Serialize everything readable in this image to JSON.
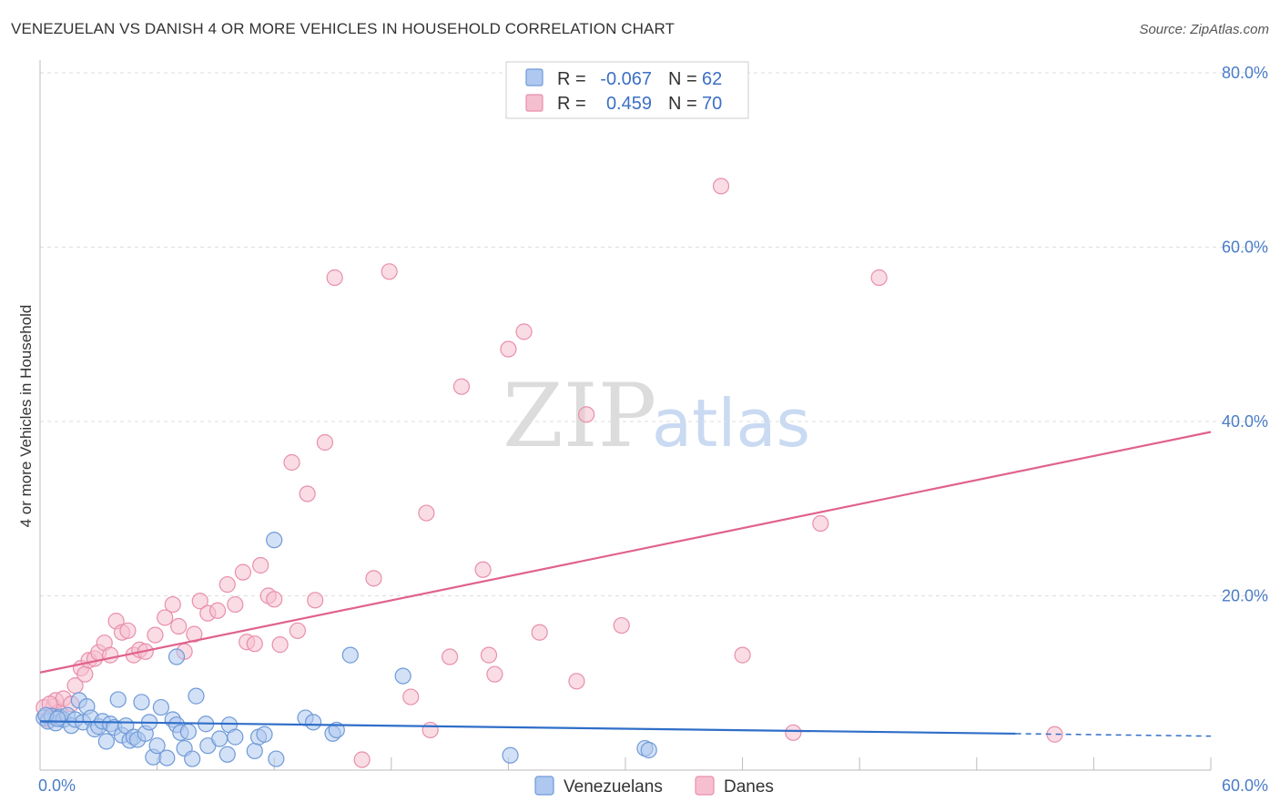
{
  "header": {
    "title": "VENEZUELAN VS DANISH 4 OR MORE VEHICLES IN HOUSEHOLD CORRELATION CHART",
    "source": "Source: ZipAtlas.com"
  },
  "watermark": {
    "zip": "ZIP",
    "atlas": "atlas"
  },
  "colors": {
    "blue_fill": "#aec8ef",
    "blue_stroke": "#6f9ad8",
    "blue_line": "#2f6ec8",
    "pink_fill": "#f6bfd0",
    "pink_stroke": "#e88fab",
    "pink_line": "#e0628c",
    "tick_text": "#4a7cc7",
    "grid": "#dddddd"
  },
  "legend": {
    "rows": [
      {
        "r_label": "R =",
        "r_value": "-0.067",
        "n_label": "N =",
        "n_value": "62",
        "series": "Venezuelans"
      },
      {
        "r_label": "R =",
        "r_value": "0.459",
        "n_label": "N =",
        "n_value": "70",
        "series": "Danes"
      }
    ]
  },
  "chart_data": {
    "type": "scatter",
    "title": "VENEZUELAN VS DANISH 4 OR MORE VEHICLES IN HOUSEHOLD CORRELATION CHART",
    "xlabel": "",
    "ylabel": "4 or more Vehicles in Household",
    "xlim": [
      0,
      60
    ],
    "ylim": [
      0,
      80
    ],
    "x_tick_labels": [
      {
        "value": 0,
        "label": "0.0%"
      },
      {
        "value": 60,
        "label": "60.0%"
      }
    ],
    "y_tick_labels": [
      {
        "value": 20,
        "label": "20.0%"
      },
      {
        "value": 40,
        "label": "40.0%"
      },
      {
        "value": 60,
        "label": "60.0%"
      },
      {
        "value": 80,
        "label": "80.0%"
      }
    ],
    "x_minor_ticks": [
      0,
      6,
      12,
      18,
      24,
      30,
      36,
      42,
      48,
      54,
      60
    ],
    "y_gridlines": [
      20,
      40,
      60,
      80
    ],
    "legend_position": "top-center",
    "series": [
      {
        "name": "Venezuelans",
        "color": "#aec8ef",
        "trend": {
          "x_start": 0,
          "y_start": 5.6,
          "x_end": 60,
          "y_end": 3.9,
          "solid_until_x": 50
        },
        "points": [
          [
            0.2,
            6.0
          ],
          [
            0.4,
            5.6
          ],
          [
            0.6,
            6.2
          ],
          [
            0.8,
            5.4
          ],
          [
            1.0,
            6.1
          ],
          [
            1.2,
            5.8
          ],
          [
            1.4,
            6.3
          ],
          [
            1.6,
            5.1
          ],
          [
            1.8,
            5.8
          ],
          [
            2.0,
            8.0
          ],
          [
            2.2,
            5.5
          ],
          [
            2.4,
            7.3
          ],
          [
            2.6,
            6.0
          ],
          [
            2.8,
            4.7
          ],
          [
            3.0,
            5.0
          ],
          [
            3.2,
            5.6
          ],
          [
            3.4,
            3.3
          ],
          [
            3.6,
            5.3
          ],
          [
            3.8,
            4.9
          ],
          [
            4.0,
            8.1
          ],
          [
            4.2,
            4.0
          ],
          [
            4.4,
            5.1
          ],
          [
            4.6,
            3.4
          ],
          [
            4.8,
            3.8
          ],
          [
            5.0,
            3.5
          ],
          [
            5.2,
            7.8
          ],
          [
            5.4,
            4.2
          ],
          [
            5.6,
            5.5
          ],
          [
            5.8,
            1.5
          ],
          [
            6.0,
            2.8
          ],
          [
            6.2,
            7.2
          ],
          [
            6.5,
            1.4
          ],
          [
            6.8,
            5.8
          ],
          [
            7.0,
            5.2
          ],
          [
            7.2,
            4.3
          ],
          [
            7.4,
            2.5
          ],
          [
            7.6,
            4.4
          ],
          [
            7.8,
            1.3
          ],
          [
            8.0,
            8.5
          ],
          [
            8.5,
            5.3
          ],
          [
            8.6,
            2.8
          ],
          [
            9.2,
            3.6
          ],
          [
            9.6,
            1.8
          ],
          [
            9.7,
            5.2
          ],
          [
            10.0,
            3.8
          ],
          [
            11.0,
            2.2
          ],
          [
            11.2,
            3.8
          ],
          [
            11.5,
            4.1
          ],
          [
            12.0,
            26.4
          ],
          [
            12.1,
            1.3
          ],
          [
            13.6,
            6.0
          ],
          [
            14.0,
            5.5
          ],
          [
            15.0,
            4.2
          ],
          [
            15.2,
            4.6
          ],
          [
            18.6,
            10.8
          ],
          [
            24.1,
            1.7
          ],
          [
            31.0,
            2.5
          ],
          [
            31.2,
            2.3
          ],
          [
            7.0,
            13.0
          ],
          [
            15.9,
            13.2
          ],
          [
            0.3,
            6.3
          ],
          [
            0.9,
            5.9
          ]
        ]
      },
      {
        "name": "Danes",
        "color": "#f6bfd0",
        "trend": {
          "x_start": 0,
          "y_start": 11.2,
          "x_end": 60,
          "y_end": 38.8
        },
        "points": [
          [
            0.2,
            7.2
          ],
          [
            0.4,
            5.8
          ],
          [
            0.6,
            6.3
          ],
          [
            0.7,
            7.3
          ],
          [
            0.8,
            8.0
          ],
          [
            1.0,
            6.7
          ],
          [
            1.2,
            8.2
          ],
          [
            1.6,
            7.6
          ],
          [
            1.8,
            9.7
          ],
          [
            2.1,
            11.7
          ],
          [
            2.3,
            11.0
          ],
          [
            2.5,
            12.6
          ],
          [
            2.8,
            12.8
          ],
          [
            3.0,
            13.5
          ],
          [
            3.3,
            14.6
          ],
          [
            3.6,
            13.2
          ],
          [
            3.9,
            17.1
          ],
          [
            4.2,
            15.8
          ],
          [
            4.5,
            16.0
          ],
          [
            4.8,
            13.2
          ],
          [
            5.1,
            13.8
          ],
          [
            5.4,
            13.6
          ],
          [
            5.9,
            15.5
          ],
          [
            6.4,
            17.5
          ],
          [
            6.8,
            19.0
          ],
          [
            7.1,
            16.5
          ],
          [
            7.4,
            13.6
          ],
          [
            7.9,
            15.6
          ],
          [
            8.2,
            19.4
          ],
          [
            8.6,
            18.0
          ],
          [
            9.1,
            18.3
          ],
          [
            9.6,
            21.3
          ],
          [
            10.0,
            19.0
          ],
          [
            10.4,
            22.7
          ],
          [
            10.6,
            14.7
          ],
          [
            11.0,
            14.5
          ],
          [
            11.3,
            23.5
          ],
          [
            11.7,
            20.0
          ],
          [
            12.0,
            19.6
          ],
          [
            12.3,
            14.4
          ],
          [
            12.9,
            35.3
          ],
          [
            13.7,
            31.7
          ],
          [
            14.1,
            19.5
          ],
          [
            14.6,
            37.6
          ],
          [
            15.1,
            56.5
          ],
          [
            16.5,
            1.2
          ],
          [
            17.1,
            22.0
          ],
          [
            17.9,
            57.2
          ],
          [
            19.0,
            8.4
          ],
          [
            19.8,
            29.5
          ],
          [
            20.0,
            4.6
          ],
          [
            21.0,
            13.0
          ],
          [
            21.6,
            44.0
          ],
          [
            22.7,
            23.0
          ],
          [
            23.0,
            13.2
          ],
          [
            23.3,
            11.0
          ],
          [
            24.0,
            48.3
          ],
          [
            24.8,
            50.3
          ],
          [
            25.6,
            15.8
          ],
          [
            27.5,
            10.2
          ],
          [
            28.0,
            40.8
          ],
          [
            29.8,
            16.6
          ],
          [
            34.9,
            67.0
          ],
          [
            36.0,
            13.2
          ],
          [
            38.6,
            4.3
          ],
          [
            40.0,
            28.3
          ],
          [
            43.0,
            56.5
          ],
          [
            52.0,
            4.1
          ],
          [
            0.5,
            7.6
          ],
          [
            13.2,
            16.0
          ]
        ]
      }
    ]
  }
}
